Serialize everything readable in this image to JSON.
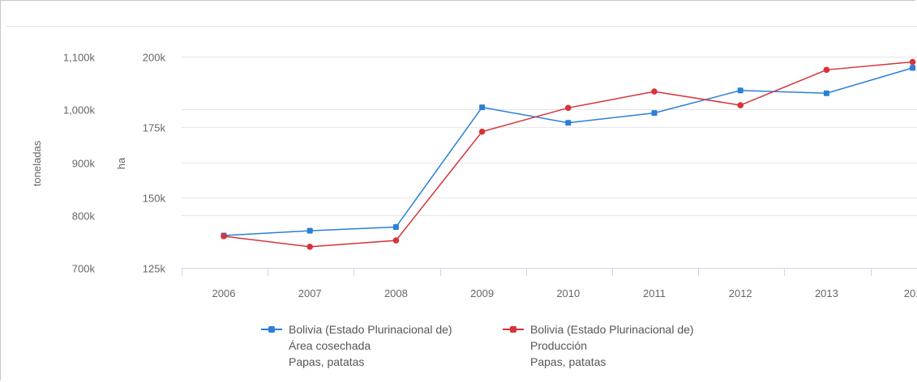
{
  "chart_data": {
    "type": "line",
    "x": [
      "2006",
      "2007",
      "2008",
      "2009",
      "2010",
      "2011",
      "2012",
      "2013",
      "201"
    ],
    "y_left": {
      "label": "toneladas",
      "ticks": [
        "700k",
        "800k",
        "900k",
        "1,000k",
        "1,100k"
      ],
      "range": [
        700000,
        1100000
      ]
    },
    "y_right": {
      "label": "ha",
      "ticks": [
        "125k",
        "150k",
        "175k",
        "200k"
      ],
      "range": [
        125000,
        200000
      ]
    },
    "series": [
      {
        "name_lines": [
          "Bolivia (Estado Plurinacional de)",
          "Área cosechada",
          "Papas, patatas"
        ],
        "axis": "ha",
        "color": "#2b7fd8",
        "values": [
          136500,
          138200,
          139500,
          182000,
          176500,
          180000,
          188000,
          187000,
          196000
        ]
      },
      {
        "name_lines": [
          "Bolivia (Estado Plurinacional de)",
          "Producción",
          "Papas, patatas"
        ],
        "axis": "toneladas",
        "color": "#d6333b",
        "values": [
          760000,
          740000,
          752000,
          958000,
          1003000,
          1034000,
          1008000,
          1075000,
          1090000
        ]
      }
    ],
    "grid": true,
    "legend_position": "bottom"
  }
}
